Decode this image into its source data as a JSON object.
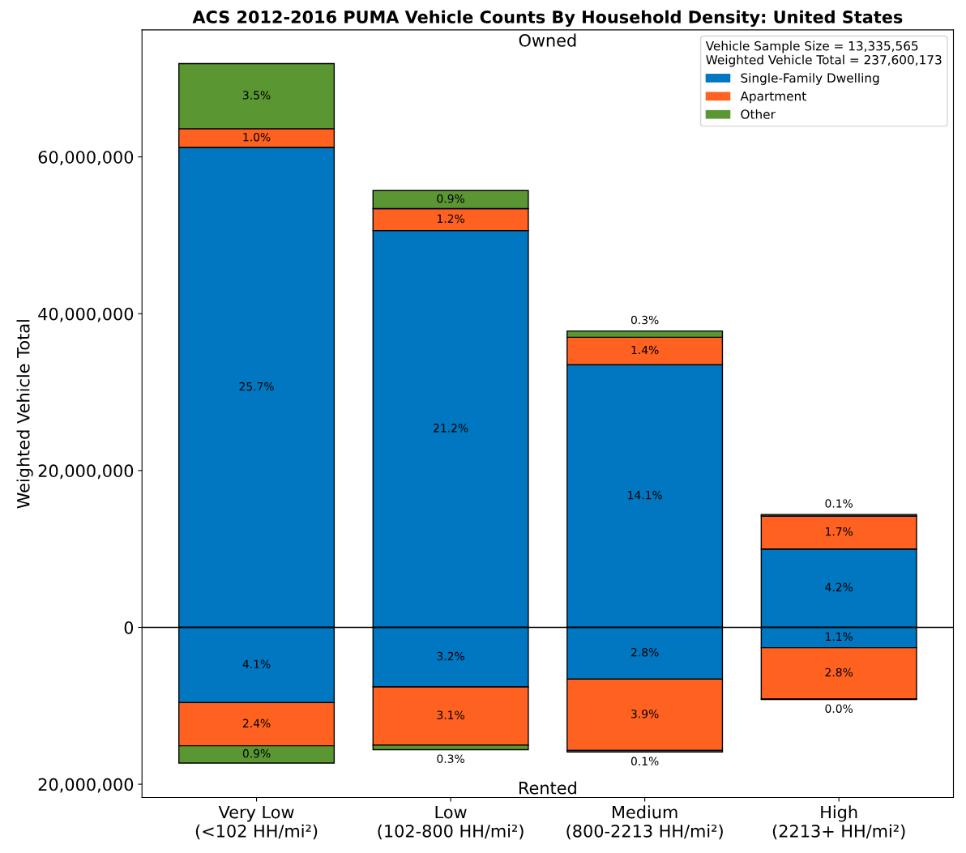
{
  "chart_data": {
    "type": "bar",
    "stacked": true,
    "title": "ACS 2012-2016 PUMA Vehicle Counts By Household Density: United States",
    "ylabel": "Weighted Vehicle Total",
    "legend_title": "Vehicle Sample Size = 13,335,565\nWeighted Vehicle Total = 237,600,173",
    "categories": [
      "Very Low\n(<102 HH/mi²)",
      "Low\n(102-800 HH/mi²)",
      "Medium\n(800-2213 HH/mi²)",
      "High\n(2213+ HH/mi²)"
    ],
    "series": [
      {
        "name": "Single-Family Dwelling",
        "color": "#0077c0",
        "values": [
          61200000,
          50600000,
          33500000,
          10000000
        ]
      },
      {
        "name": "Apartment",
        "color": "#ff6120",
        "values": [
          2400000,
          2800000,
          3500000,
          4200000
        ]
      },
      {
        "name": "Other",
        "color": "#5a9632",
        "values": [
          8300000,
          2300000,
          800000,
          200000
        ]
      },
      {
        "color": "#0077c0",
        "values": [
          -9600000,
          -7600000,
          -6600000,
          -2600000
        ]
      },
      {
        "color": "#ff6120",
        "values": [
          -5500000,
          -7400000,
          -9100000,
          -6500000
        ]
      },
      {
        "color": "#5a9632",
        "values": [
          -2200000,
          -600000,
          -200000,
          -100000
        ]
      }
    ],
    "ylim": [
      -21700000,
      76200000
    ],
    "yticks": [
      {
        "value": -20000000,
        "label": "20,000,000"
      },
      {
        "value": 0,
        "label": "0"
      },
      {
        "value": 20000000,
        "label": "20,000,000"
      },
      {
        "value": 40000000,
        "label": "40,000,000"
      },
      {
        "value": 60000000,
        "label": "60,000,000"
      }
    ],
    "ref_lines": [
      {
        "axis": "y",
        "value": 0,
        "color": "#000000"
      }
    ],
    "annotations": [
      "Owned",
      "Rented",
      "25.7%",
      "21.2%",
      "14.1%",
      "4.2%",
      "1.0%",
      "1.2%",
      "1.4%",
      "1.7%",
      "3.5%",
      "0.9%",
      "0.3%",
      "0.1%",
      "4.1%",
      "3.2%",
      "2.8%",
      "1.1%",
      "2.4%",
      "3.1%",
      "3.9%",
      "2.8%",
      "0.9%",
      "0.3%",
      "0.1%",
      "0.0%"
    ],
    "legend": "top right",
    "grid": false
  }
}
